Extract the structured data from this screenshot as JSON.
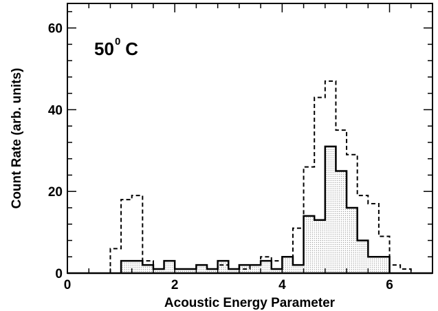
{
  "chart_data": {
    "type": "histogram",
    "xlabel": "Acoustic Energy Parameter",
    "ylabel": "Count Rate (arb. units)",
    "xlim": [
      0,
      6.8
    ],
    "ylim": [
      0,
      66
    ],
    "x_ticks": [
      "0",
      "2",
      "4",
      "6"
    ],
    "y_ticks": [
      "0",
      "20",
      "40",
      "60"
    ],
    "annotation": {
      "main": "50",
      "sup": "0",
      "suffix": " C"
    },
    "grid": false,
    "bin_width": 0.2,
    "series": [
      {
        "style": "dashed",
        "fill": "none",
        "bins": [
          {
            "x": 0.8,
            "y": 6
          },
          {
            "x": 1.0,
            "y": 18
          },
          {
            "x": 1.2,
            "y": 19
          },
          {
            "x": 1.4,
            "y": 3
          },
          {
            "x": 1.6,
            "y": 1
          },
          {
            "x": 1.8,
            "y": 3
          },
          {
            "x": 2.0,
            "y": 1
          },
          {
            "x": 2.2,
            "y": 1
          },
          {
            "x": 2.4,
            "y": 2
          },
          {
            "x": 2.6,
            "y": 1
          },
          {
            "x": 2.8,
            "y": 2
          },
          {
            "x": 3.0,
            "y": 1
          },
          {
            "x": 3.2,
            "y": 1
          },
          {
            "x": 3.4,
            "y": 2
          },
          {
            "x": 3.6,
            "y": 4
          },
          {
            "x": 3.8,
            "y": 3
          },
          {
            "x": 4.0,
            "y": 4
          },
          {
            "x": 4.2,
            "y": 11
          },
          {
            "x": 4.4,
            "y": 26
          },
          {
            "x": 4.6,
            "y": 43
          },
          {
            "x": 4.8,
            "y": 47
          },
          {
            "x": 5.0,
            "y": 35
          },
          {
            "x": 5.2,
            "y": 29
          },
          {
            "x": 5.4,
            "y": 19
          },
          {
            "x": 5.6,
            "y": 17
          },
          {
            "x": 5.8,
            "y": 9
          },
          {
            "x": 6.0,
            "y": 2
          },
          {
            "x": 6.2,
            "y": 1
          }
        ]
      },
      {
        "style": "solid",
        "fill": "dotted",
        "bins": [
          {
            "x": 1.0,
            "y": 3
          },
          {
            "x": 1.2,
            "y": 3
          },
          {
            "x": 1.4,
            "y": 2
          },
          {
            "x": 1.6,
            "y": 1
          },
          {
            "x": 1.8,
            "y": 3
          },
          {
            "x": 2.0,
            "y": 1
          },
          {
            "x": 2.2,
            "y": 1
          },
          {
            "x": 2.4,
            "y": 2
          },
          {
            "x": 2.6,
            "y": 1
          },
          {
            "x": 2.8,
            "y": 3
          },
          {
            "x": 3.0,
            "y": 1
          },
          {
            "x": 3.2,
            "y": 2
          },
          {
            "x": 3.4,
            "y": 2
          },
          {
            "x": 3.6,
            "y": 3
          },
          {
            "x": 3.8,
            "y": 1
          },
          {
            "x": 4.0,
            "y": 4
          },
          {
            "x": 4.2,
            "y": 2
          },
          {
            "x": 4.4,
            "y": 14
          },
          {
            "x": 4.6,
            "y": 13
          },
          {
            "x": 4.8,
            "y": 31
          },
          {
            "x": 5.0,
            "y": 25
          },
          {
            "x": 5.2,
            "y": 16
          },
          {
            "x": 5.4,
            "y": 8
          },
          {
            "x": 5.6,
            "y": 4
          },
          {
            "x": 5.8,
            "y": 4
          }
        ]
      }
    ]
  }
}
